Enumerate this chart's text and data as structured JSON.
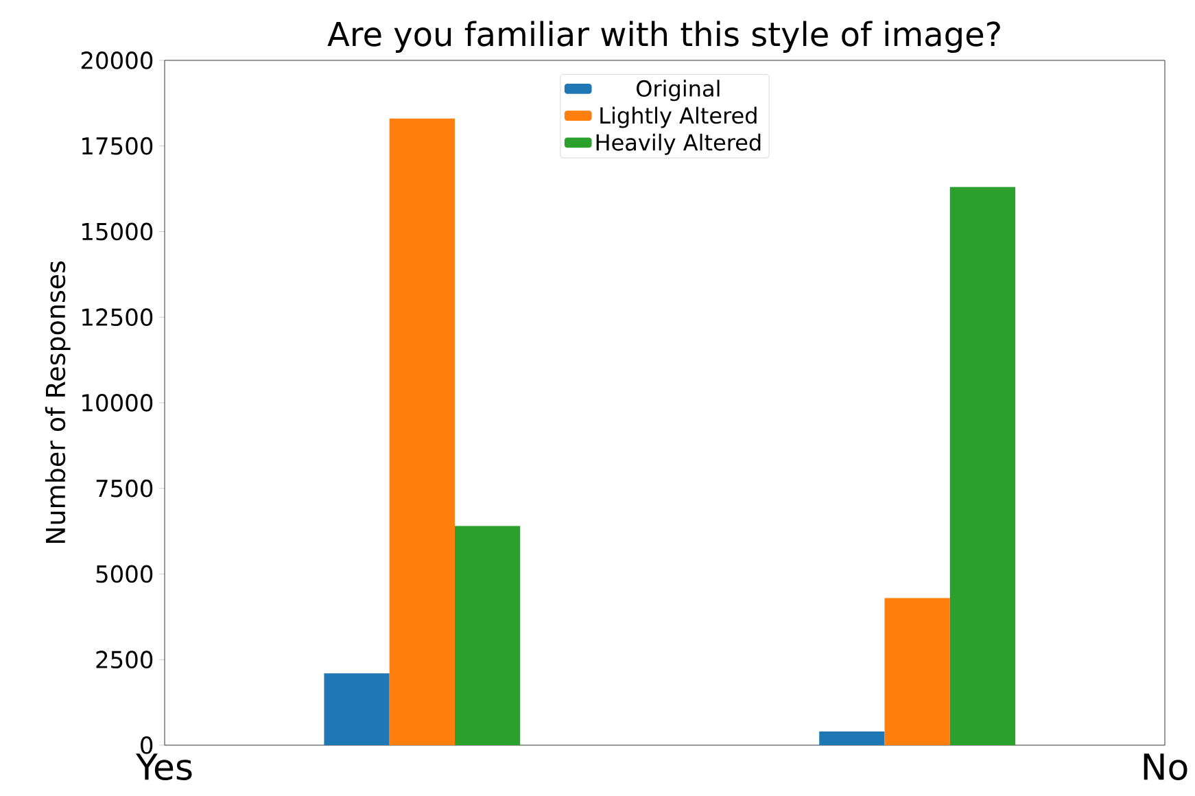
{
  "chart_data": {
    "type": "bar",
    "title": "Are you familiar with this style of image?",
    "ylabel": "Number of Responses",
    "categories": [
      null,
      null
    ],
    "annotations": [
      "Yes",
      "No"
    ],
    "ylim": [
      0,
      20000
    ],
    "yticks": [
      0,
      2500,
      5000,
      7500,
      10000,
      12500,
      15000,
      17500,
      20000
    ],
    "series": [
      {
        "name": "Original",
        "color": "#1f77b4",
        "values": [
          2100,
          400
        ]
      },
      {
        "name": "Lightly Altered",
        "color": "#ff7f0e",
        "values": [
          18300,
          4300
        ]
      },
      {
        "name": "Heavily Altered",
        "color": "#2ca02c",
        "values": [
          6400,
          16300
        ]
      }
    ],
    "legend": "top",
    "grid": false
  }
}
